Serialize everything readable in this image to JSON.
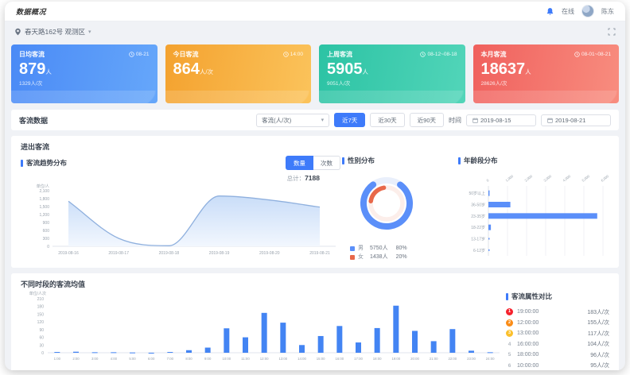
{
  "theme": {
    "accent": "#3e7bfa",
    "page_bg": "#f0f2f6",
    "panel_bg": "#ffffff"
  },
  "icons": {
    "caret": "▾",
    "location": "pin-icon",
    "bell": "bell-icon",
    "clock": "clock-icon",
    "calendar": "calendar-icon",
    "expand": "expand-icon"
  },
  "navbar": {
    "logo": "数据概况",
    "status": "在线",
    "username": "陈东"
  },
  "location": {
    "text": "春天路162号 观测区"
  },
  "stat_cards": [
    {
      "title": "日均客流",
      "date": "08-21",
      "value": "879",
      "unit": "人",
      "sub": "1329人/次"
    },
    {
      "title": "今日客流",
      "date": "14:00",
      "value": "864",
      "unit": "人/次",
      "sub": ""
    },
    {
      "title": "上周客流",
      "date": "08-12~08-18",
      "value": "5905",
      "unit": "人",
      "sub": "9051人/次"
    },
    {
      "title": "本月客流",
      "date": "08-01~08-21",
      "value": "18637",
      "unit": "人",
      "sub": "28626人/次"
    }
  ],
  "filter": {
    "label": "客流数据",
    "metric_select": "客流(人/次)",
    "range_buttons": [
      "近7天",
      "近30天",
      "近90天"
    ],
    "active_range": "近7天",
    "time_label": "时间",
    "date_from": "2019-08-15",
    "date_to": "2019-08-21"
  },
  "trend_panel": {
    "title": "进出客流",
    "trend": {
      "title": "客流趋势分布",
      "toggle": [
        "数量",
        "次数"
      ],
      "active": "数量",
      "total_label": "总计：",
      "total_value": "7188"
    },
    "gender": {
      "title": "性别分布",
      "legend": [
        {
          "label": "男",
          "value": "5750人",
          "pct": "80%",
          "color": "#5b8ff9"
        },
        {
          "label": "女",
          "value": "1438人",
          "pct": "20%",
          "color": "#e8684a"
        }
      ]
    },
    "age": {
      "title": "年龄段分布"
    }
  },
  "bottom_panel": {
    "title": "不同时段的客流均值",
    "ranking": {
      "title": "客流属性对比",
      "items": [
        {
          "rank": "1",
          "time": "19:00:00",
          "value": "183人/次"
        },
        {
          "rank": "2",
          "time": "12:00:00",
          "value": "155人/次"
        },
        {
          "rank": "3",
          "time": "13:00:00",
          "value": "117人/次"
        },
        {
          "rank": "4",
          "time": "16:00:00",
          "value": "104人/次"
        },
        {
          "rank": "5",
          "time": "18:00:00",
          "value": "96人/次"
        },
        {
          "rank": "6",
          "time": "10:00:00",
          "value": "95人/次"
        }
      ]
    }
  },
  "chart_data": [
    {
      "id": "trend_area",
      "type": "area",
      "title": "客流趋势分布",
      "ylabel": "单位/人",
      "x": [
        "2019-08-16",
        "2019-08-17",
        "2019-08-18",
        "2019-08-19",
        "2019-08-20",
        "2019-08-21"
      ],
      "values": [
        1700,
        300,
        20,
        1900,
        1750,
        1480
      ],
      "yticks": [
        0,
        300,
        600,
        900,
        1200,
        1500,
        1800,
        2100
      ],
      "ylim": [
        0,
        2100
      ],
      "grid": false,
      "total": 7188,
      "line_color": "#8fb0de",
      "fill_from": "#c9ddf8",
      "fill_to": "#f2f7fe"
    },
    {
      "id": "gender_donut",
      "type": "pie",
      "title": "性别分布",
      "slices": [
        {
          "label": "男",
          "value": 5750,
          "pct": 80,
          "color": "#5b8ff9"
        },
        {
          "label": "女",
          "value": 1438,
          "pct": 20,
          "color": "#e8684a"
        }
      ]
    },
    {
      "id": "age_bars",
      "type": "bar",
      "orientation": "horizontal",
      "title": "年龄段分布",
      "categories": [
        "50岁以上",
        "36-50岁",
        "23-35岁",
        "18-22岁",
        "13-17岁",
        "6-12岁"
      ],
      "values": [
        60,
        1150,
        5700,
        130,
        0,
        0
      ],
      "xticks": [
        0,
        1000,
        2000,
        3000,
        4000,
        5000,
        6000
      ],
      "xlim": [
        0,
        6000
      ],
      "bar_color": "#5b8ff9"
    },
    {
      "id": "hourly_bars",
      "type": "bar",
      "orientation": "vertical",
      "title": "不同时段的客流均值",
      "ylabel": "单位/人次",
      "categories": [
        "1:00",
        "2:00",
        "3:00",
        "4:00",
        "5:00",
        "6:00",
        "7:00",
        "8:00",
        "9:00",
        "10:00",
        "11:00",
        "12:00",
        "13:00",
        "14:00",
        "15:00",
        "16:00",
        "17:00",
        "18:00",
        "19:00",
        "20:00",
        "21:00",
        "22:00",
        "23:00",
        "24:00"
      ],
      "values": [
        3,
        4,
        2,
        2,
        1,
        0,
        3,
        10,
        20,
        95,
        60,
        155,
        117,
        30,
        65,
        104,
        40,
        96,
        183,
        85,
        45,
        92,
        8,
        2
      ],
      "yticks": [
        0,
        30,
        60,
        90,
        120,
        150,
        180,
        210
      ],
      "ylim": [
        0,
        210
      ],
      "bar_color": "#4384f3"
    }
  ]
}
